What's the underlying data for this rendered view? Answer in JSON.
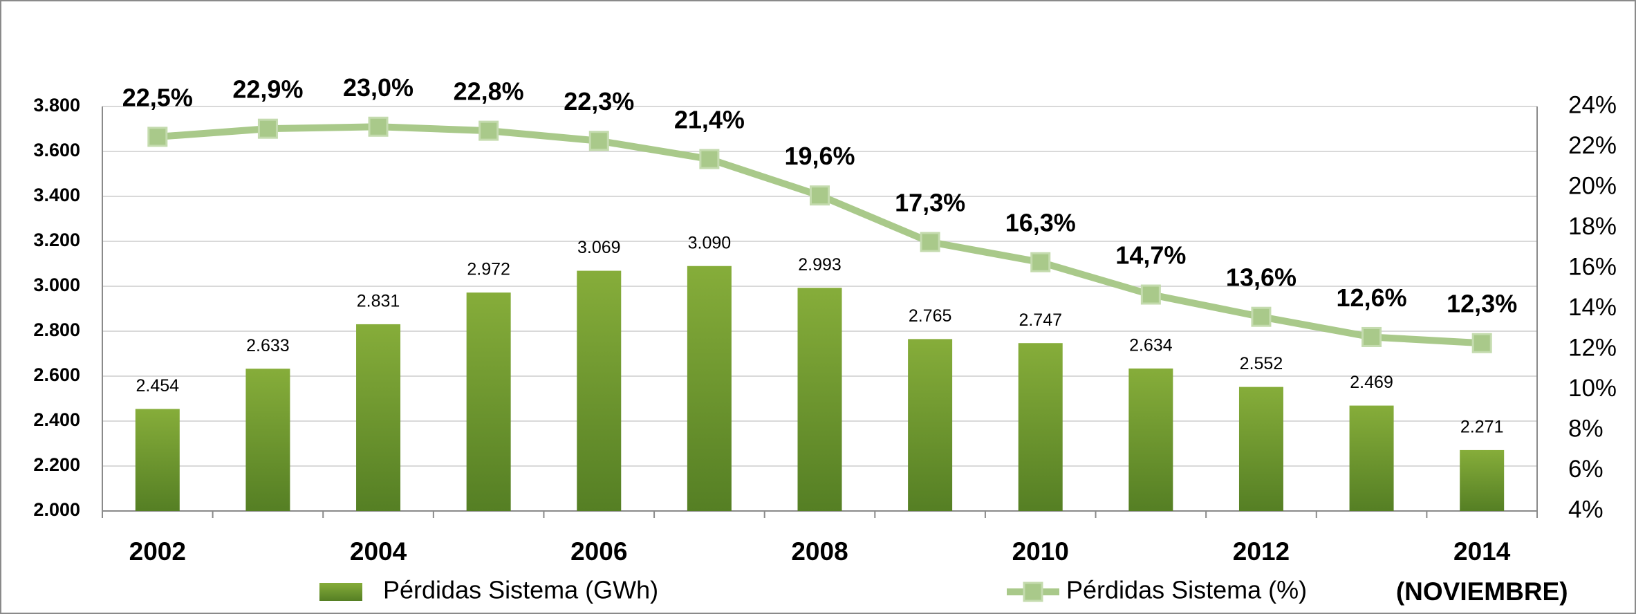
{
  "chart_data": {
    "type": "bar_line",
    "categories": [
      "2002",
      null,
      "2004",
      null,
      "2006",
      null,
      "2008",
      null,
      "2010",
      null,
      "2012",
      null,
      "2014"
    ],
    "annotation": "(NOVIEMBRE)",
    "series": [
      {
        "name": "Pérdidas Sistema (GWh)",
        "type": "bar",
        "color": "#86ad3a",
        "values": [
          2454,
          2633,
          2831,
          2972,
          3069,
          3090,
          2993,
          2765,
          2747,
          2634,
          2552,
          2469,
          2271
        ],
        "value_labels": [
          "2.454",
          "2.633",
          "2.831",
          "2.972",
          "3.069",
          "3.090",
          "2.993",
          "2.765",
          "2.747",
          "2.634",
          "2.552",
          "2.469",
          "2.271"
        ]
      },
      {
        "name": "Pérdidas Sistema (%)",
        "type": "line",
        "axis": "y2",
        "color": "#a9c98a",
        "values": [
          22.5,
          22.9,
          23.0,
          22.8,
          22.3,
          21.4,
          19.6,
          17.3,
          16.3,
          14.7,
          13.6,
          12.6,
          12.3
        ],
        "value_labels": [
          "22,5%",
          "22,9%",
          "23,0%",
          "22,8%",
          "22,3%",
          "21,4%",
          "19,6%",
          "17,3%",
          "16,3%",
          "14,7%",
          "13,6%",
          "12,6%",
          "12,3%"
        ]
      }
    ],
    "ylim": [
      2000,
      3800
    ],
    "yticks": [
      {
        "value": 2000,
        "label": "2.000"
      },
      {
        "value": 2200,
        "label": "2.200"
      },
      {
        "value": 2400,
        "label": "2.400"
      },
      {
        "value": 2600,
        "label": "2.600"
      },
      {
        "value": 2800,
        "label": "2.800"
      },
      {
        "value": 3000,
        "label": "3.000"
      },
      {
        "value": 3200,
        "label": "3.200"
      },
      {
        "value": 3400,
        "label": "3.400"
      },
      {
        "value": 3600,
        "label": "3.600"
      },
      {
        "value": 3800,
        "label": "3.800"
      }
    ],
    "y2lim": [
      4,
      24
    ],
    "y2ticks": [
      {
        "value": 4,
        "label": "4%"
      },
      {
        "value": 6,
        "label": "6%"
      },
      {
        "value": 8,
        "label": "8%"
      },
      {
        "value": 10,
        "label": "10%"
      },
      {
        "value": 12,
        "label": "12%"
      },
      {
        "value": 14,
        "label": "14%"
      },
      {
        "value": 16,
        "label": "16%"
      },
      {
        "value": 18,
        "label": "18%"
      },
      {
        "value": 20,
        "label": "20%"
      },
      {
        "value": 22,
        "label": "22%"
      },
      {
        "value": 24,
        "label": "24%"
      }
    ],
    "grid": true
  }
}
